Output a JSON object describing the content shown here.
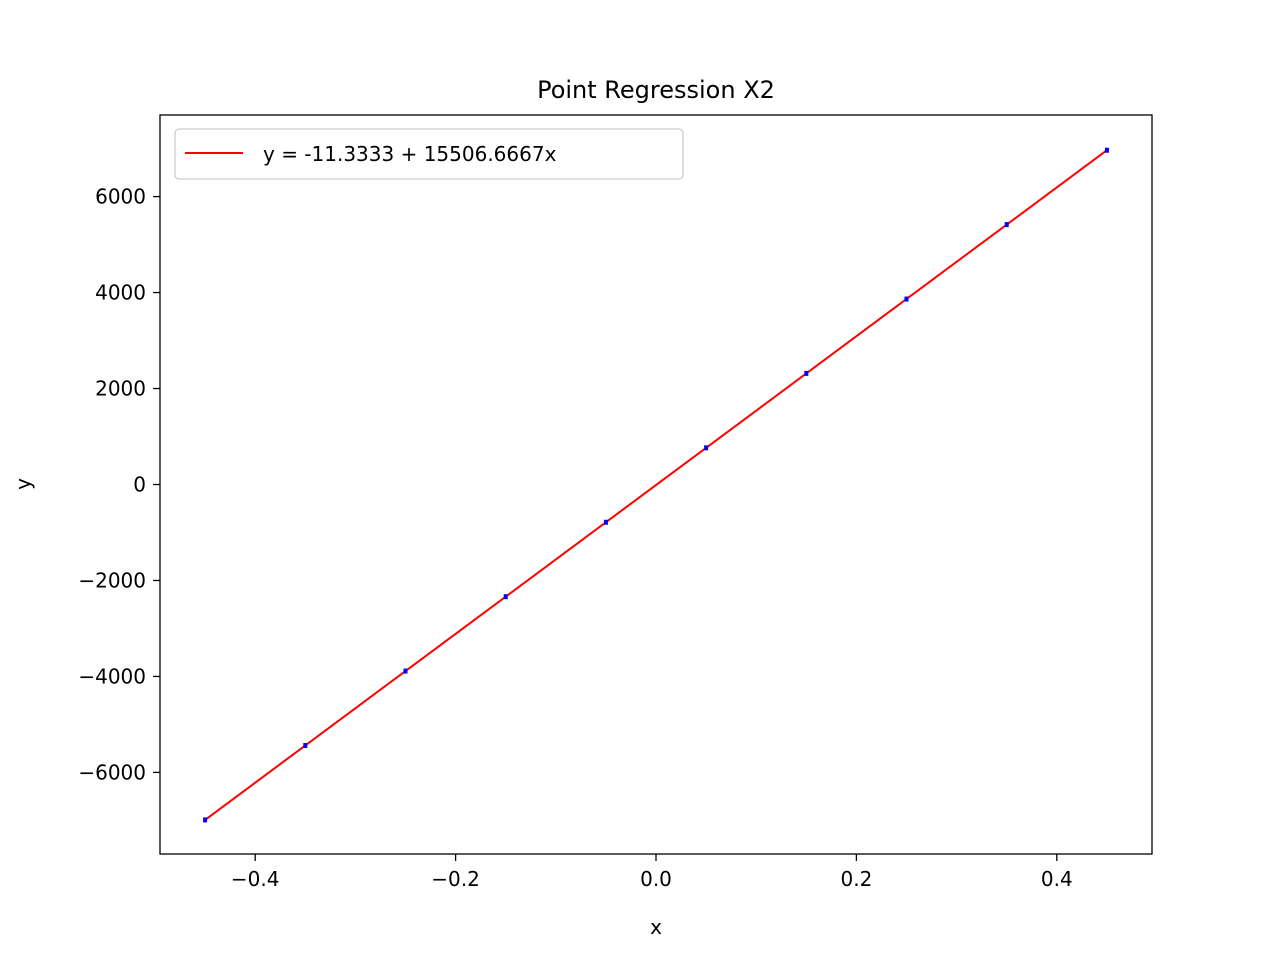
{
  "chart_data": {
    "type": "scatter",
    "title": "Point Regression X2",
    "xlabel": "x",
    "ylabel": "y",
    "xlim": [
      -0.495,
      0.495
    ],
    "ylim": [
      -7700,
      7700
    ],
    "xticks": [
      -0.4,
      -0.2,
      0.0,
      0.2,
      0.4
    ],
    "xtick_labels": [
      "−0.4",
      "−0.2",
      "0.0",
      "0.2",
      "0.4"
    ],
    "yticks": [
      -6000,
      -4000,
      -2000,
      0,
      2000,
      4000,
      6000
    ],
    "ytick_labels": [
      "−6000",
      "−4000",
      "−2000",
      "0",
      "2000",
      "4000",
      "6000"
    ],
    "grid": false,
    "legend_position": "top-left",
    "series": [
      {
        "kind": "points",
        "color": "#0000ff",
        "x": [
          -0.45,
          -0.35,
          -0.25,
          -0.15,
          -0.05,
          0.05,
          0.15,
          0.25,
          0.35,
          0.45
        ],
        "y": [
          -6990,
          -5439,
          -3888,
          -2338,
          -787,
          764,
          2315,
          3865,
          5416,
          6966
        ]
      },
      {
        "kind": "line",
        "name": "y = -11.3333 + 15506.6667x",
        "color": "#ff0000",
        "x": [
          -0.45,
          0.45
        ],
        "y": [
          -6989.33,
          6966.67
        ]
      }
    ]
  }
}
